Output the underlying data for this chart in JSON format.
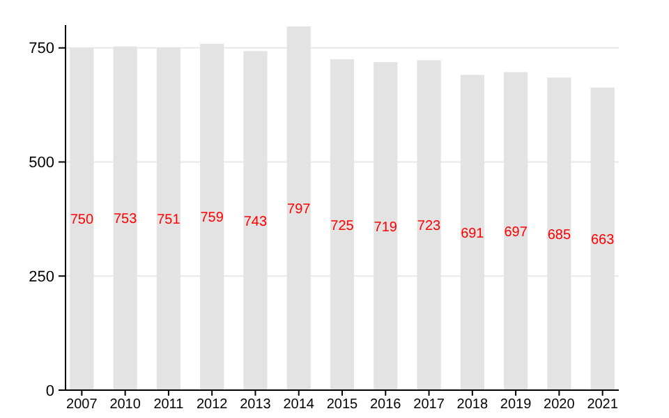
{
  "chart_data": {
    "type": "bar",
    "categories": [
      "2007",
      "2010",
      "2011",
      "2012",
      "2013",
      "2014",
      "2015",
      "2016",
      "2017",
      "2018",
      "2019",
      "2020",
      "2021"
    ],
    "values": [
      750,
      753,
      751,
      759,
      743,
      797,
      725,
      719,
      723,
      691,
      697,
      685,
      663
    ],
    "color": "#e3e3e3",
    "ylim": [
      0,
      800
    ],
    "yticks": [
      0,
      250,
      500,
      750
    ],
    "grid": "y",
    "data_labels": true
  }
}
